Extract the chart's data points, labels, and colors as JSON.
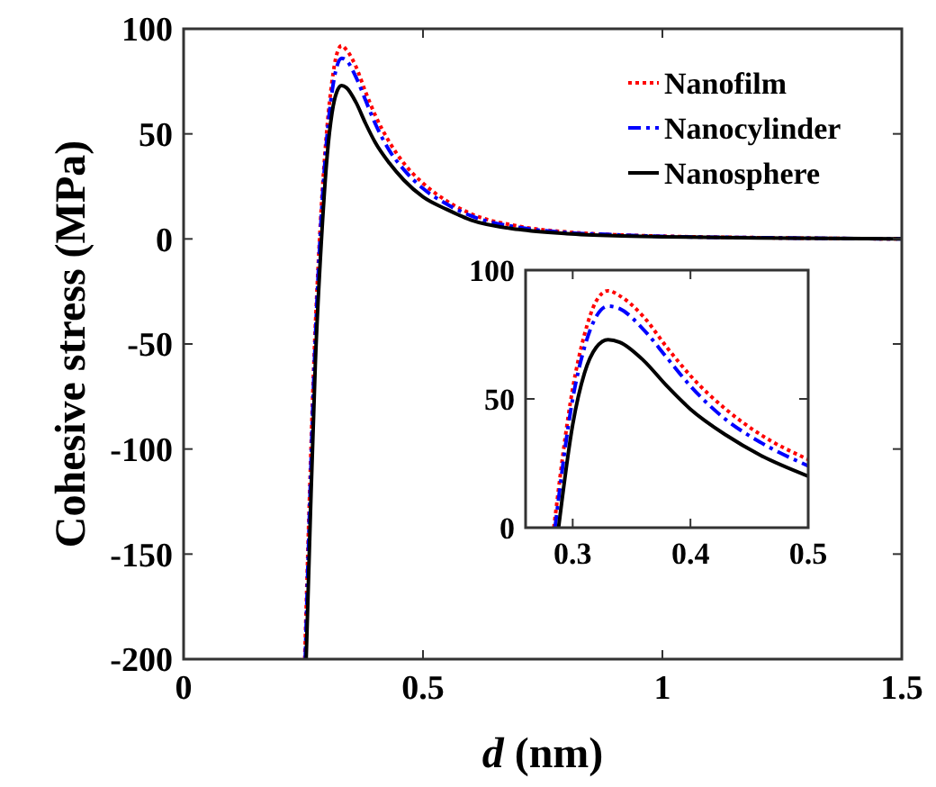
{
  "chart_data": [
    {
      "type": "line",
      "xlabel": "d (nm)",
      "ylabel": "Cohesive stress (MPa)",
      "xlim": [
        0,
        1.5
      ],
      "ylim": [
        -200,
        100
      ],
      "xticks": [
        0,
        0.5,
        1,
        1.5
      ],
      "yticks": [
        -200,
        -150,
        -100,
        -50,
        0,
        50,
        100
      ],
      "grid": false,
      "legend": "top right",
      "series": [
        {
          "name": "Nanofilm",
          "color": "#ff0000",
          "line_style": "dotted",
          "x": [
            0.253,
            0.262,
            0.272,
            0.284,
            0.3,
            0.31,
            0.32,
            0.33,
            0.34,
            0.36,
            0.38,
            0.4,
            0.43,
            0.46,
            0.5,
            0.55,
            0.6,
            0.7,
            0.8,
            0.9,
            1.0,
            1.2,
            1.5
          ],
          "values": [
            -200,
            -130,
            -60,
            0,
            54,
            75,
            88,
            92,
            90,
            82,
            70,
            59,
            46,
            36,
            26.5,
            18,
            12,
            6,
            3.3,
            2,
            1.3,
            0.6,
            0
          ]
        },
        {
          "name": "Nanocylinder",
          "color": "#0000ff",
          "line_style": "dashed",
          "x": [
            0.254,
            0.263,
            0.273,
            0.285,
            0.3,
            0.31,
            0.32,
            0.33,
            0.34,
            0.36,
            0.38,
            0.4,
            0.43,
            0.46,
            0.5,
            0.55,
            0.6,
            0.7,
            0.8,
            0.9,
            1.0,
            1.2,
            1.5
          ],
          "values": [
            -200,
            -130,
            -60,
            0,
            50,
            70,
            82,
            86,
            85,
            77,
            66,
            55,
            42,
            33,
            24,
            16.5,
            11,
            5.5,
            3,
            2,
            1.2,
            0.6,
            0
          ]
        },
        {
          "name": "Nanosphere",
          "color": "#000000",
          "line_style": "solid",
          "x": [
            0.256,
            0.265,
            0.275,
            0.288,
            0.3,
            0.31,
            0.32,
            0.33,
            0.34,
            0.36,
            0.38,
            0.4,
            0.43,
            0.46,
            0.5,
            0.55,
            0.6,
            0.7,
            0.8,
            0.9,
            1.0,
            1.2,
            1.5
          ],
          "values": [
            -200,
            -130,
            -60,
            0,
            40,
            60,
            70,
            73,
            72,
            65,
            55,
            46,
            36,
            28,
            20,
            14,
            9,
            4.5,
            2.5,
            1.5,
            1,
            0.5,
            0
          ]
        }
      ]
    },
    {
      "type": "line",
      "xlim": [
        0.26,
        0.5
      ],
      "ylim": [
        0,
        100
      ],
      "xticks": [
        0.3,
        0.4,
        0.5
      ],
      "yticks": [
        0,
        50,
        100
      ],
      "series": [
        {
          "color": "#ff0000",
          "line_style": "dotted",
          "x": [
            0.284,
            0.3,
            0.31,
            0.32,
            0.33,
            0.34,
            0.36,
            0.38,
            0.4,
            0.43,
            0.46,
            0.5
          ],
          "values": [
            0,
            54,
            75,
            88,
            92,
            90,
            82,
            70,
            59,
            46,
            36,
            26.5
          ]
        },
        {
          "color": "#0000ff",
          "line_style": "dashed",
          "x": [
            0.285,
            0.3,
            0.31,
            0.32,
            0.33,
            0.34,
            0.36,
            0.38,
            0.4,
            0.43,
            0.46,
            0.5
          ],
          "values": [
            0,
            50,
            70,
            82,
            86,
            85,
            77,
            66,
            55,
            42,
            33,
            24
          ]
        },
        {
          "color": "#000000",
          "line_style": "solid",
          "x": [
            0.288,
            0.3,
            0.31,
            0.32,
            0.33,
            0.34,
            0.36,
            0.38,
            0.4,
            0.43,
            0.46,
            0.5
          ],
          "values": [
            0,
            40,
            60,
            70,
            73,
            72,
            65,
            55,
            46,
            36,
            28,
            20
          ]
        }
      ]
    }
  ]
}
